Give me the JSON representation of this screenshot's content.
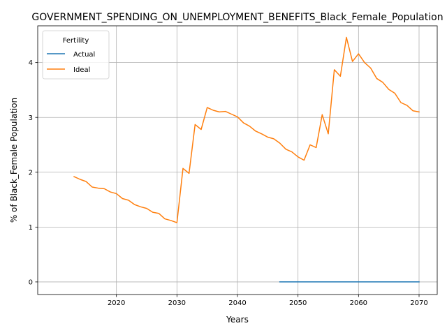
{
  "chart_data": {
    "type": "line",
    "title": "GOVERNMENT_SPENDING_ON_UNEMPLOYMENT_BENEFITS_Black_Female_Population",
    "xlabel": "Years",
    "ylabel": "% of Black_Female Population",
    "xlim": [
      2007,
      2073
    ],
    "ylim": [
      -0.23,
      4.67
    ],
    "xticks": [
      2020,
      2030,
      2040,
      2050,
      2060,
      2070
    ],
    "yticks": [
      0,
      1,
      2,
      3,
      4
    ],
    "grid": true,
    "legend": {
      "title": "Fertility",
      "placement": "top-left"
    },
    "series": [
      {
        "name": "Actual",
        "color": "#1f77b4",
        "x": [
          2047,
          2050,
          2055,
          2060,
          2065,
          2070
        ],
        "y": [
          0,
          0,
          0,
          0,
          0,
          0
        ]
      },
      {
        "name": "Ideal",
        "color": "#ff7f0e",
        "x": [
          2013,
          2014,
          2015,
          2016,
          2017,
          2018,
          2019,
          2020,
          2021,
          2022,
          2023,
          2024,
          2025,
          2026,
          2027,
          2028,
          2029,
          2030,
          2031,
          2032,
          2033,
          2034,
          2035,
          2036,
          2037,
          2038,
          2039,
          2040,
          2041,
          2042,
          2043,
          2044,
          2045,
          2046,
          2047,
          2048,
          2049,
          2050,
          2051,
          2052,
          2053,
          2054,
          2055,
          2056,
          2057,
          2058,
          2059,
          2060,
          2061,
          2062,
          2063,
          2064,
          2065,
          2066,
          2067,
          2068,
          2069,
          2070
        ],
        "y": [
          1.92,
          1.87,
          1.83,
          1.73,
          1.71,
          1.7,
          1.64,
          1.61,
          1.52,
          1.49,
          1.41,
          1.37,
          1.34,
          1.27,
          1.25,
          1.15,
          1.12,
          1.08,
          2.07,
          1.98,
          2.87,
          2.78,
          3.18,
          3.13,
          3.1,
          3.11,
          3.06,
          3.01,
          2.9,
          2.84,
          2.75,
          2.7,
          2.64,
          2.61,
          2.53,
          2.42,
          2.37,
          2.28,
          2.22,
          2.5,
          2.45,
          3.05,
          2.7,
          3.87,
          3.75,
          4.46,
          4.02,
          4.16,
          4.0,
          3.9,
          3.71,
          3.64,
          3.51,
          3.44,
          3.27,
          3.22,
          3.12,
          3.1
        ]
      }
    ]
  }
}
